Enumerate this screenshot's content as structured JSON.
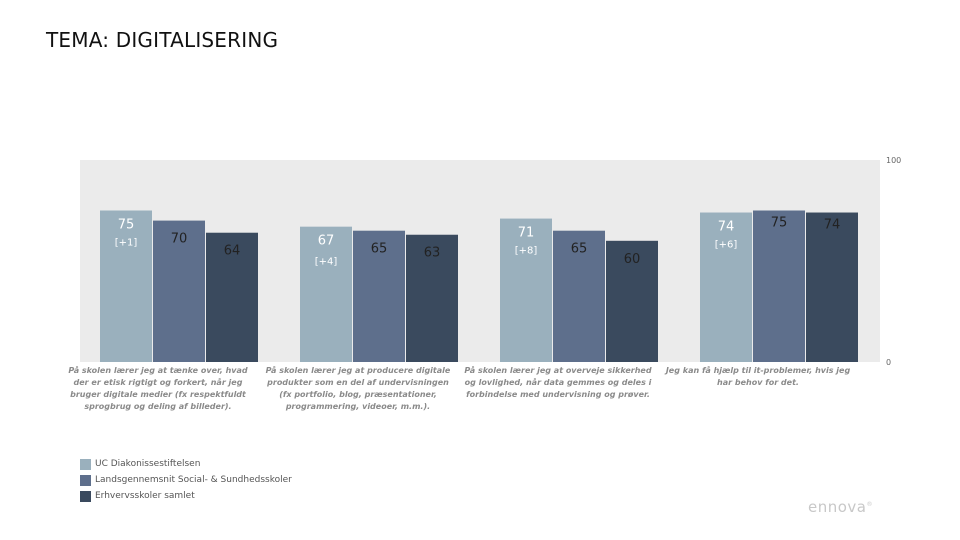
{
  "page": {
    "title": "TEMA: DIGITALISERING"
  },
  "chart_data": {
    "type": "bar",
    "ylim": [
      0,
      100
    ],
    "yticks": [
      "100",
      "0"
    ],
    "grid": false,
    "legend_position": "bottom-left",
    "categories": [
      "På skolen lærer jeg at tænke over, hvad der er etisk rigtigt og forkert, når jeg bruger digitale medier (fx respektfuldt sprogbrug og deling af billeder).",
      "På skolen lærer jeg at producere digitale produkter som en del af undervisningen (fx portfolio, blog, præsentationer, programmering, videoer, m.m.).",
      "På skolen lærer jeg at overveje sikkerhed og lovlighed, når data gemmes og deles i forbindelse med undervisning og prøver.",
      "Jeg kan få hjælp til it-problemer, hvis jeg har behov for det."
    ],
    "category_lines": [
      [
        "På skolen lærer jeg at tænke over, hvad",
        "der er etisk rigtigt og forkert, når jeg",
        "bruger digitale medier (fx respektfuldt",
        "sprogbrug og deling af billeder)."
      ],
      [
        "På skolen lærer jeg at producere digitale",
        "produkter som en del af undervisningen",
        "(fx portfolio, blog, præsentationer,",
        "programmering, videoer, m.m.)."
      ],
      [
        "På skolen lærer jeg at overveje sikkerhed",
        "og lovlighed, når data gemmes og deles i",
        "forbindelse med undervisning og prøver."
      ],
      [
        "Jeg kan få hjælp til it-problemer, hvis jeg",
        "har behov for det."
      ]
    ],
    "series": [
      {
        "name": "UC Diakonissestiftelsen",
        "color": "#9ab0bd",
        "values": [
          75,
          67,
          71,
          74
        ],
        "changes": [
          "[+1]",
          "[+4]",
          "[+8]",
          "[+6]"
        ]
      },
      {
        "name": "Landsgennemsnit Social- & Sundhedsskoler",
        "color": "#5e6f8c",
        "values": [
          70,
          65,
          65,
          75
        ],
        "changes": []
      },
      {
        "name": "Erhvervsskoler samlet",
        "color": "#3a4a5e",
        "values": [
          64,
          63,
          60,
          74
        ],
        "changes": []
      }
    ]
  },
  "branding": {
    "logo": "ennova"
  },
  "colors": {
    "plot_background": "#ebebeb",
    "value_label_light": "#ffffff",
    "value_label_dark": "#222222",
    "axis_text": "#666666"
  }
}
